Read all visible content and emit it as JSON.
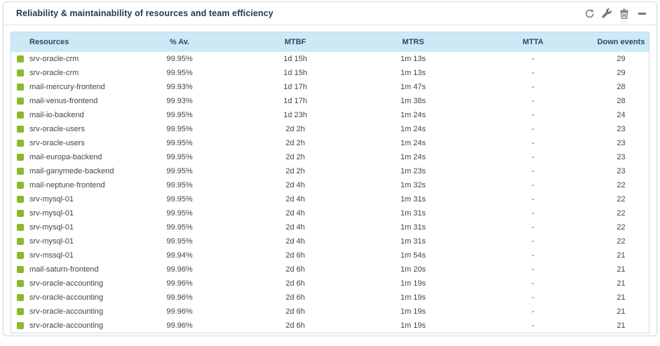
{
  "widget": {
    "title": "Reliability & maintainability of resources and team efficiency",
    "toolbar": {
      "refresh_tooltip": "refresh",
      "configure_tooltip": "configure",
      "delete_tooltip": "delete",
      "minimize_tooltip": "minimize"
    }
  },
  "colors": {
    "status_ok": "#8cb82d",
    "header_bg": "#cde9f6",
    "table_border": "#c6d9e6",
    "icon": "#7b7468",
    "title_text": "#223c50"
  },
  "table": {
    "columns": [
      "Resources",
      "% Av.",
      "MTBF",
      "MTRS",
      "MTTA",
      "Down events"
    ],
    "rows": [
      {
        "resource": "srv-oracle-crm",
        "availability": "99.95%",
        "mtbf": "1d 15h",
        "mtrs": "1m 13s",
        "mtta": "-",
        "down_events": "29"
      },
      {
        "resource": "srv-oracle-crm",
        "availability": "99.95%",
        "mtbf": "1d 15h",
        "mtrs": "1m 13s",
        "mtta": "-",
        "down_events": "29"
      },
      {
        "resource": "mail-mercury-frontend",
        "availability": "99.93%",
        "mtbf": "1d 17h",
        "mtrs": "1m 47s",
        "mtta": "-",
        "down_events": "28"
      },
      {
        "resource": "mail-venus-frontend",
        "availability": "99.93%",
        "mtbf": "1d 17h",
        "mtrs": "1m 38s",
        "mtta": "-",
        "down_events": "28"
      },
      {
        "resource": "mail-io-backend",
        "availability": "99.95%",
        "mtbf": "1d 23h",
        "mtrs": "1m 24s",
        "mtta": "-",
        "down_events": "24"
      },
      {
        "resource": "srv-oracle-users",
        "availability": "99.95%",
        "mtbf": "2d 2h",
        "mtrs": "1m 24s",
        "mtta": "-",
        "down_events": "23"
      },
      {
        "resource": "srv-oracle-users",
        "availability": "99.95%",
        "mtbf": "2d 2h",
        "mtrs": "1m 24s",
        "mtta": "-",
        "down_events": "23"
      },
      {
        "resource": "mail-europa-backend",
        "availability": "99.95%",
        "mtbf": "2d 2h",
        "mtrs": "1m 24s",
        "mtta": "-",
        "down_events": "23"
      },
      {
        "resource": "mail-ganymede-backend",
        "availability": "99.95%",
        "mtbf": "2d 2h",
        "mtrs": "1m 23s",
        "mtta": "-",
        "down_events": "23"
      },
      {
        "resource": "mail-neptune-frontend",
        "availability": "99.95%",
        "mtbf": "2d 4h",
        "mtrs": "1m 32s",
        "mtta": "-",
        "down_events": "22"
      },
      {
        "resource": "srv-mysql-01",
        "availability": "99.95%",
        "mtbf": "2d 4h",
        "mtrs": "1m 31s",
        "mtta": "-",
        "down_events": "22"
      },
      {
        "resource": "srv-mysql-01",
        "availability": "99.95%",
        "mtbf": "2d 4h",
        "mtrs": "1m 31s",
        "mtta": "-",
        "down_events": "22"
      },
      {
        "resource": "srv-mysql-01",
        "availability": "99.95%",
        "mtbf": "2d 4h",
        "mtrs": "1m 31s",
        "mtta": "-",
        "down_events": "22"
      },
      {
        "resource": "srv-mysql-01",
        "availability": "99.95%",
        "mtbf": "2d 4h",
        "mtrs": "1m 31s",
        "mtta": "-",
        "down_events": "22"
      },
      {
        "resource": "srv-mssql-01",
        "availability": "99.94%",
        "mtbf": "2d 6h",
        "mtrs": "1m 54s",
        "mtta": "-",
        "down_events": "21"
      },
      {
        "resource": "mail-saturn-frontend",
        "availability": "99.96%",
        "mtbf": "2d 6h",
        "mtrs": "1m 20s",
        "mtta": "-",
        "down_events": "21"
      },
      {
        "resource": "srv-oracle-accounting",
        "availability": "99.96%",
        "mtbf": "2d 6h",
        "mtrs": "1m 19s",
        "mtta": "-",
        "down_events": "21"
      },
      {
        "resource": "srv-oracle-accounting",
        "availability": "99.96%",
        "mtbf": "2d 6h",
        "mtrs": "1m 19s",
        "mtta": "-",
        "down_events": "21"
      },
      {
        "resource": "srv-oracle-accounting",
        "availability": "99.96%",
        "mtbf": "2d 6h",
        "mtrs": "1m 19s",
        "mtta": "-",
        "down_events": "21"
      },
      {
        "resource": "srv-oracle-accounting",
        "availability": "99.96%",
        "mtbf": "2d 6h",
        "mtrs": "1m 19s",
        "mtta": "-",
        "down_events": "21"
      }
    ]
  }
}
